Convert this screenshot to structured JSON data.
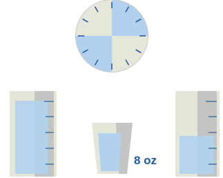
{
  "cup": {
    "label": "8 oz"
  }
}
